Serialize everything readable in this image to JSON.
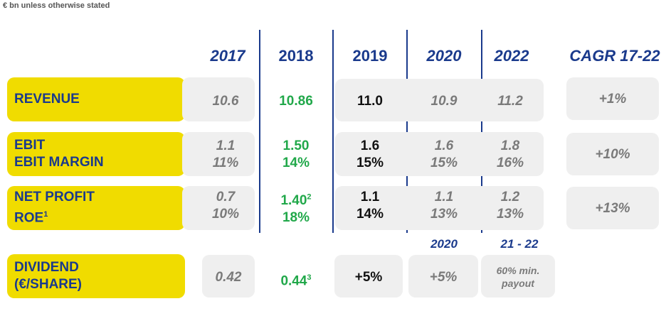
{
  "note": "€ bn unless otherwise stated",
  "headers": {
    "y2017": "2017",
    "y2018": "2018",
    "y2019": "2019",
    "y2020": "2020",
    "y2022": "2022",
    "cagr": "CAGR 17-22"
  },
  "subheaders": {
    "s2020": "2020",
    "s2122": "21 - 22"
  },
  "rows": {
    "revenue": {
      "label": "REVENUE",
      "v2017": "10.6",
      "v2018": "10.86",
      "v2019": "11.0",
      "v2020": "10.9",
      "v2022": "11.2",
      "cagr": "+1%"
    },
    "ebit": {
      "label1": "EBIT",
      "label2": "EBIT MARGIN",
      "v2017a": "1.1",
      "v2017b": "11%",
      "v2018a": "1.50",
      "v2018b": "14%",
      "v2019a": "1.6",
      "v2019b": "15%",
      "v2020a": "1.6",
      "v2020b": "15%",
      "v2022a": "1.8",
      "v2022b": "16%",
      "cagr": "+10%"
    },
    "netprofit": {
      "label1": "NET PROFIT",
      "label2": "ROE",
      "label2_sup": "1",
      "v2017a": "0.7",
      "v2017b": "10%",
      "v2018a": "1.40",
      "v2018a_sup": "2",
      "v2018b": "18%",
      "v2019a": "1.1",
      "v2019b": "14%",
      "v2020a": "1.1",
      "v2020b": "13%",
      "v2022a": "1.2",
      "v2022b": "13%",
      "cagr": "+13%"
    },
    "dividend": {
      "label1": "DIVIDEND",
      "label2": "(€/SHARE)",
      "v2017": "0.42",
      "v2018": "0.44",
      "v2018_sup": "3",
      "v2019": "+5%",
      "v2020": "+5%",
      "v2122a": "60% min.",
      "v2122b": "payout"
    }
  }
}
